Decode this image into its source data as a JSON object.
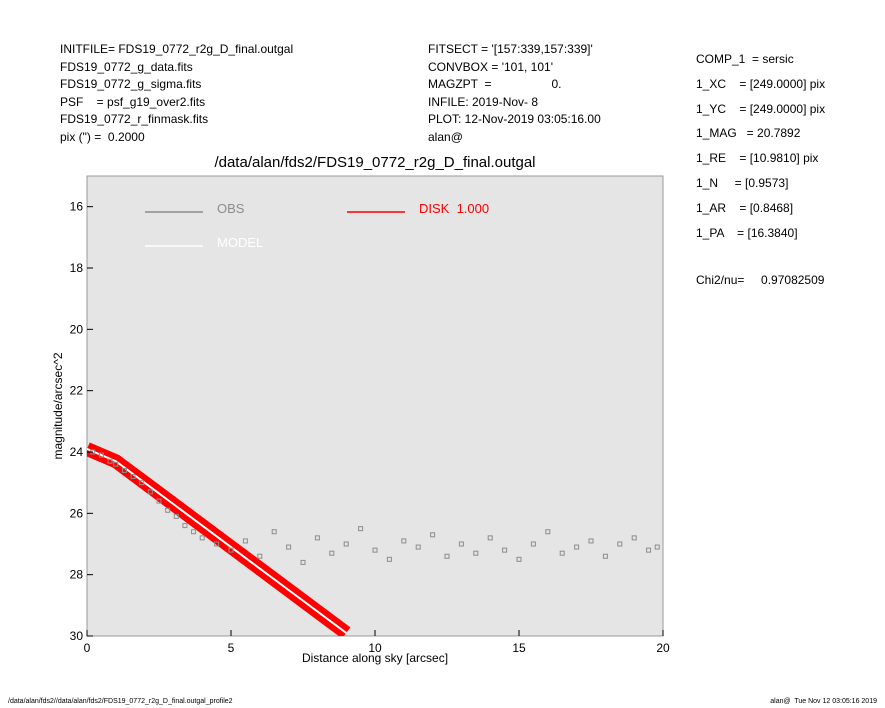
{
  "header": {
    "left": [
      "INITFILE= FDS19_0772_r2g_D_final.outgal",
      "FDS19_0772_g_data.fits",
      "FDS19_0772_g_sigma.fits",
      "PSF    = psf_g19_over2.fits",
      "FDS19_0772_r_finmask.fits",
      "pix (\") =  0.2000"
    ],
    "middle": [
      "FITSECT = '[157:339,157:339]'",
      "CONVBOX = '101, 101'",
      "MAGZPT  =                  0.",
      "INFILE: 2019-Nov- 8",
      "PLOT: 12-Nov-2019 03:05:16.00",
      "alan@"
    ],
    "right": [
      "COMP_1  = sersic",
      "1_XC    = [249.0000] pix",
      "1_YC    = [249.0000] pix",
      "1_MAG   = 20.7892",
      "1_RE    = [10.9810] pix",
      "1_N     = [0.9573]",
      "1_AR    = [0.8468]",
      "1_PA    = [16.3840]"
    ],
    "chi2": "Chi2/nu=     0.97082509"
  },
  "footer": {
    "left": "/data/alan/fds2//data/alan/fds2/FDS19_0772_r2g_D_final.outgal_profile2",
    "right": "alan@  Tue Nov 12 03:05:16 2019"
  },
  "chart_data": {
    "type": "scatter",
    "title": "/data/alan/fds2/FDS19_0772_r2g_D_final.outgal",
    "x_label": "Distance along sky [arcsec]",
    "y_label": "magnitude/arcsec^2",
    "xlim": [
      0,
      20
    ],
    "xticks": [
      0,
      5,
      10,
      15,
      20
    ],
    "ylim": [
      30,
      15
    ],
    "yticks": [
      16,
      18,
      20,
      22,
      24,
      26,
      28,
      30
    ],
    "legend": "upper left",
    "background": "#e5e5e5",
    "series": [
      {
        "name": "OBS",
        "color": "#8c8c8c",
        "style": "points",
        "x": [
          0.2,
          0.5,
          0.8,
          1.0,
          1.3,
          1.6,
          1.9,
          2.2,
          2.5,
          2.8,
          3.1,
          3.4,
          3.7,
          4.0,
          4.5,
          5.0,
          5.5,
          6.0,
          6.5,
          7.0,
          7.5,
          8.0,
          8.5,
          9.0,
          9.5,
          10,
          10.5,
          11,
          11.5,
          12,
          12.5,
          13,
          13.5,
          14,
          14.5,
          15,
          15.5,
          16,
          16.5,
          17,
          17.5,
          18,
          18.5,
          19,
          19.5,
          19.8
        ],
        "values": [
          24.0,
          24.1,
          24.3,
          24.4,
          24.6,
          24.8,
          25.0,
          25.3,
          25.6,
          25.9,
          26.1,
          26.4,
          26.6,
          26.8,
          27.0,
          27.2,
          26.9,
          27.4,
          26.6,
          27.1,
          27.6,
          26.8,
          27.3,
          27.0,
          26.5,
          27.2,
          27.5,
          26.9,
          27.1,
          26.7,
          27.4,
          27.0,
          27.3,
          26.8,
          27.2,
          27.5,
          27.0,
          26.6,
          27.3,
          27.1,
          26.9,
          27.4,
          27.0,
          26.8,
          27.2,
          27.1
        ]
      },
      {
        "name": "MODEL",
        "color": "#ffffff",
        "style": "line",
        "x": [
          0,
          1,
          2,
          3,
          4,
          5,
          6,
          7,
          8,
          9
        ],
        "values": [
          23.9,
          24.3,
          25.0,
          25.7,
          26.4,
          27.1,
          27.8,
          28.5,
          29.2,
          29.9
        ]
      },
      {
        "name": "DISK  1.000",
        "color": "#ff0000",
        "style": "band",
        "x": [
          0,
          1,
          2,
          3,
          4,
          5,
          6,
          7,
          8,
          9
        ],
        "values": [
          23.9,
          24.3,
          25.0,
          25.7,
          26.4,
          27.1,
          27.8,
          28.5,
          29.2,
          29.9
        ]
      }
    ]
  }
}
